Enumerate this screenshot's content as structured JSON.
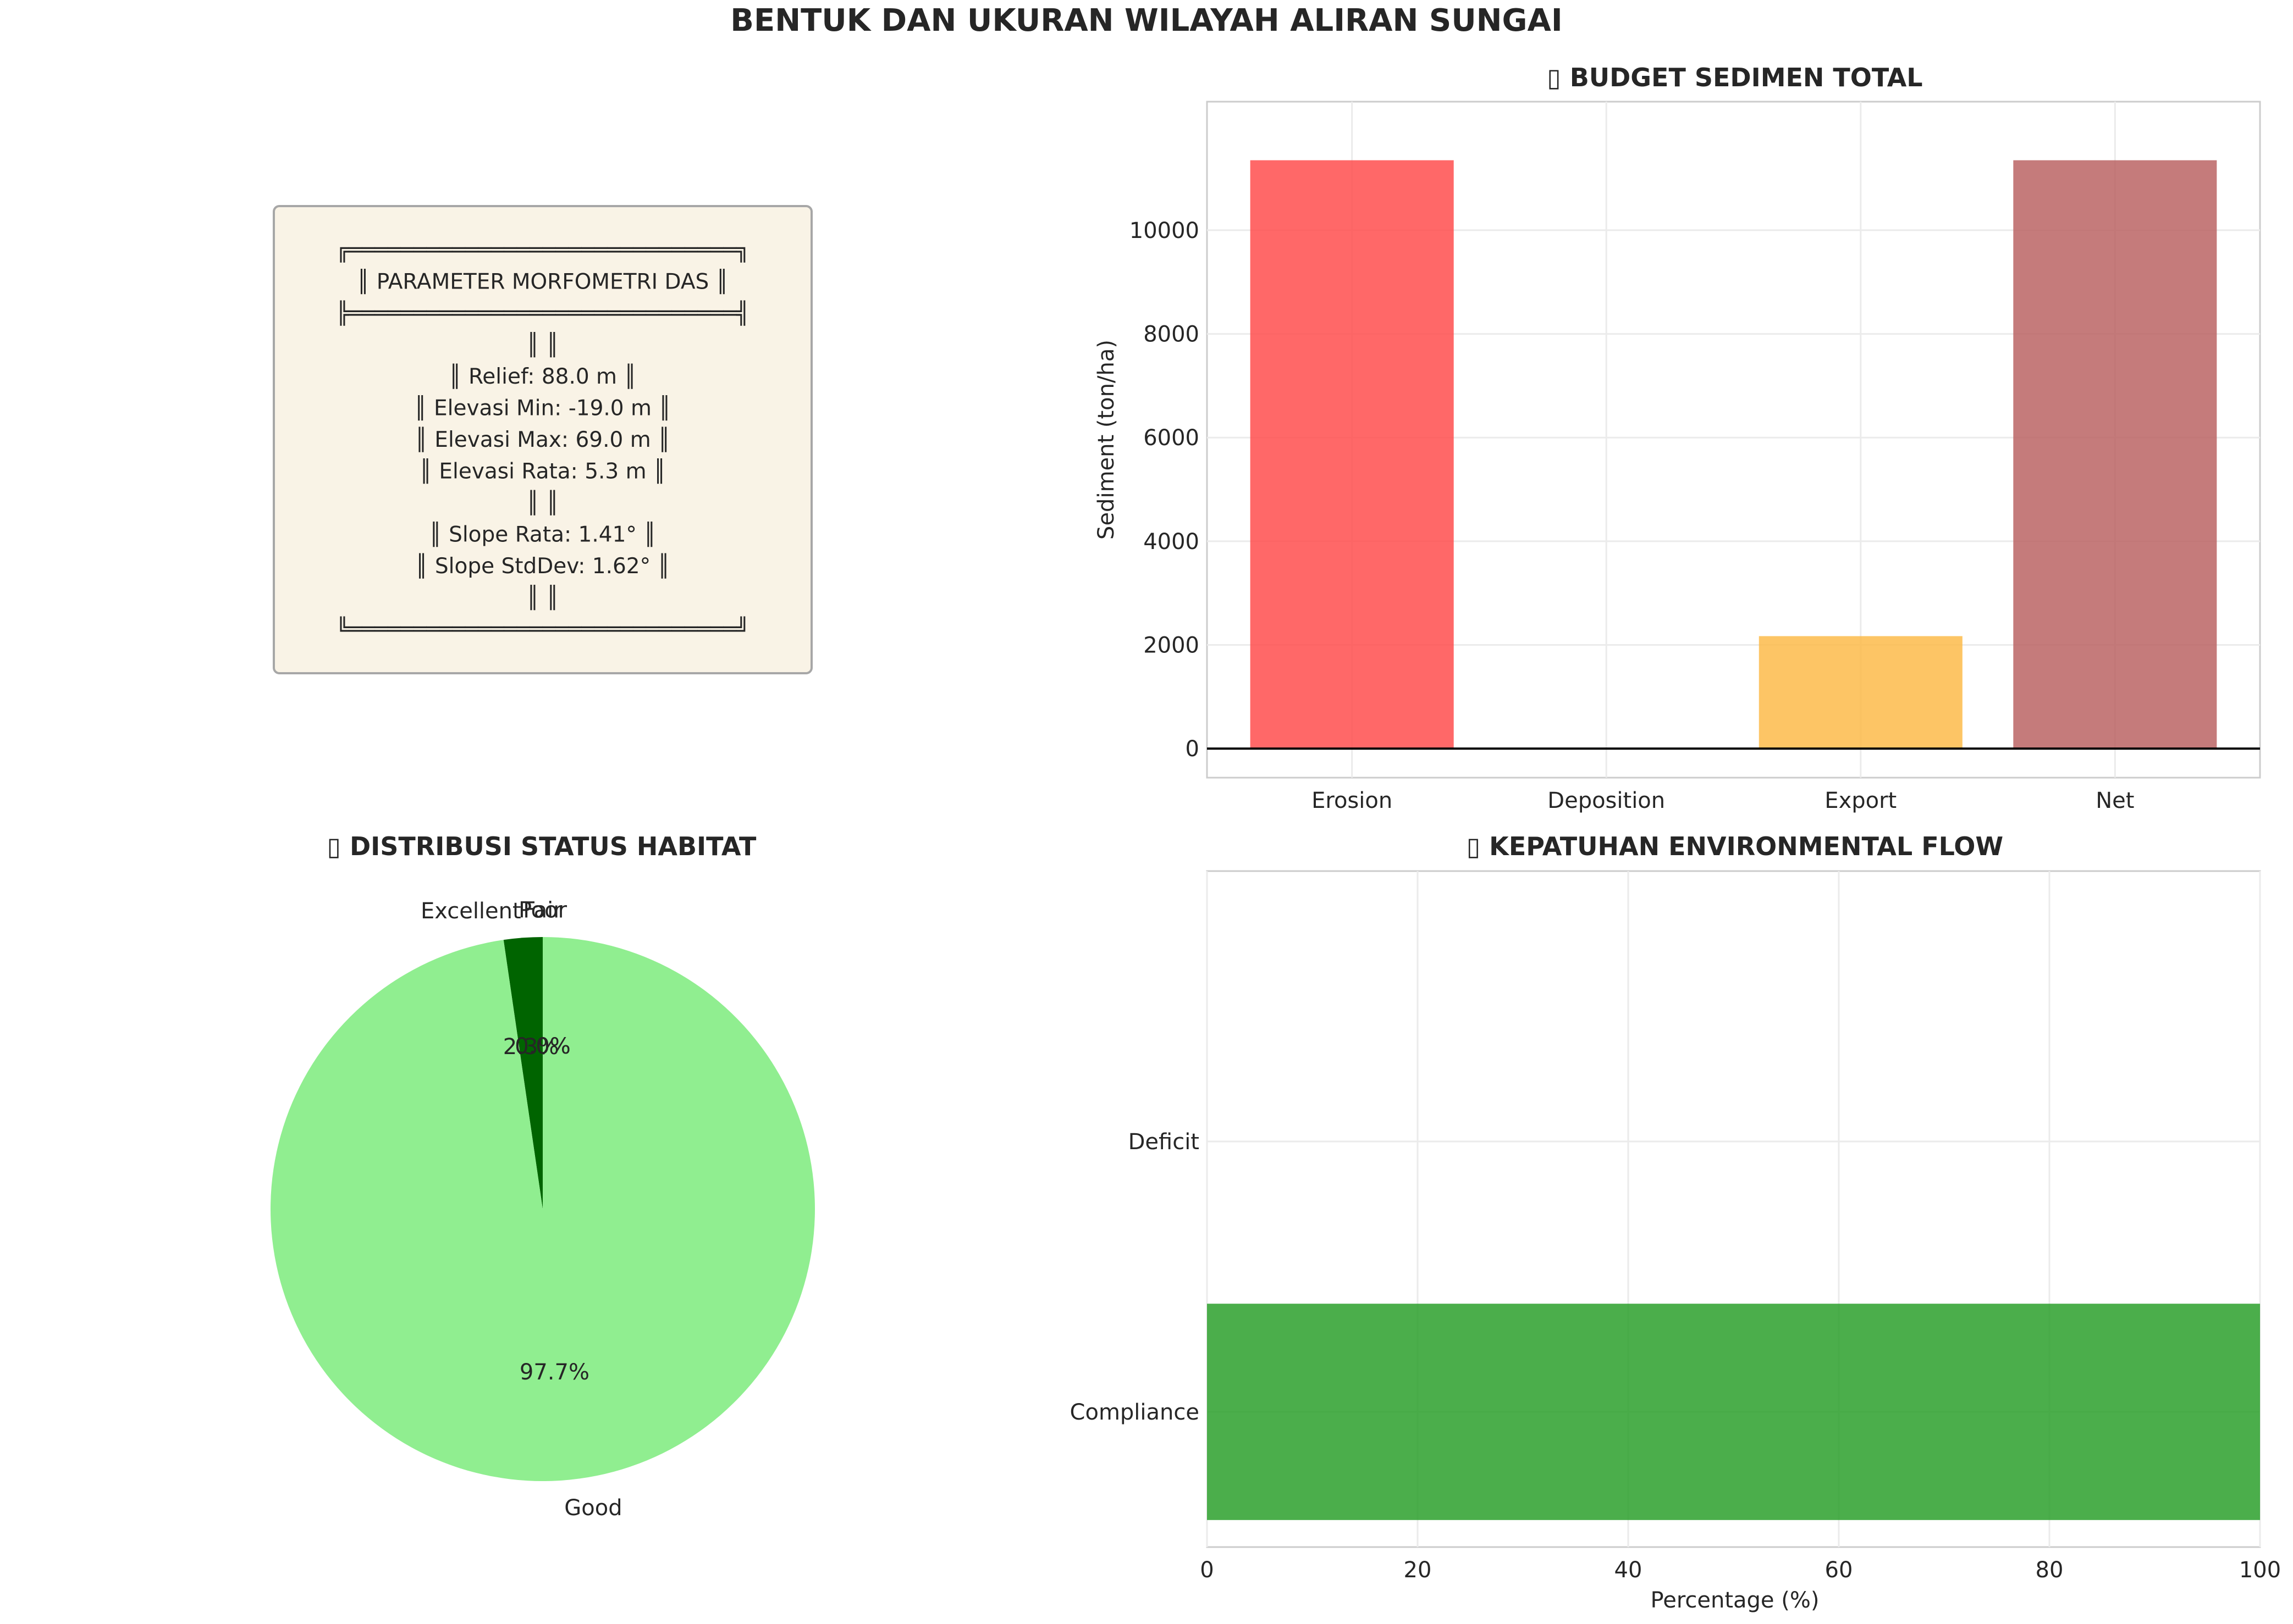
{
  "suptitle": "BENTUK DAN UKURAN WILAYAH ALIRAN SUNGAI",
  "morph_box": {
    "lines": [
      "╔══════════════════════════════╗",
      "║   PARAMETER MORFOMETRI DAS    ║",
      "╠══════════════════════════════╣",
      "║                                ║",
      "║  Relief:     88.0 m          ║",
      "║  Elevasi Min:  -19.0 m    ║",
      "║  Elevasi Max:   69.0 m    ║",
      "║  Elevasi Rata:   5.3 m   ║",
      "║                                ║",
      "║  Slope Rata:   1.41°      ║",
      "║  Slope StdDev:  1.62°    ║",
      "║                                ║",
      "╚══════════════════════════════╝"
    ],
    "colors": {
      "fill": "#f9f3e6",
      "edge": "#a7a7a7"
    }
  },
  "chart_data": [
    {
      "type": "bar",
      "title": "▯ BUDGET SEDIMEN TOTAL",
      "xlabel": "",
      "ylabel": "Sediment (ton/ha)",
      "categories": [
        "Erosion",
        "Deposition",
        "Export",
        "Net"
      ],
      "values": [
        11350,
        0,
        2170,
        11350
      ],
      "colors": [
        "#ff4d4d",
        "#4d7fff",
        "#fdbb4a",
        "#bb6464"
      ],
      "ylim": [
        -560,
        12480
      ],
      "yticks": [
        0,
        2000,
        4000,
        6000,
        8000,
        10000
      ],
      "ytick_labels": [
        "0",
        "2000",
        "4000",
        "6000",
        "8000",
        "10000"
      ],
      "grid": true,
      "zero_line": true
    },
    {
      "type": "pie",
      "title": "▯ DISTRIBUSI STATUS HABITAT",
      "labels": [
        "Poor",
        "Fair",
        "Excellent",
        "Good"
      ],
      "values": [
        0.0,
        0.0,
        2.3,
        97.7
      ],
      "pct_labels": [
        "0.0%",
        "0.0%",
        "2.3%",
        "97.7%"
      ],
      "colors": [
        "#ff0000",
        "#ffa500",
        "#006400",
        "#90ee90"
      ],
      "start_angle": 90
    },
    {
      "type": "bar",
      "orientation": "horizontal",
      "title": "▯ KEPATUHAN ENVIRONMENTAL FLOW",
      "xlabel": "Percentage (%)",
      "ylabel": "",
      "categories": [
        "Compliance",
        "Deficit"
      ],
      "values": [
        100,
        0
      ],
      "colors": [
        "#2ca02c",
        "#d62728"
      ],
      "xlim": [
        0,
        100
      ],
      "xticks": [
        0,
        20,
        40,
        60,
        80,
        100
      ],
      "xtick_labels": [
        "0",
        "20",
        "40",
        "60",
        "80",
        "100"
      ],
      "grid": true
    }
  ]
}
